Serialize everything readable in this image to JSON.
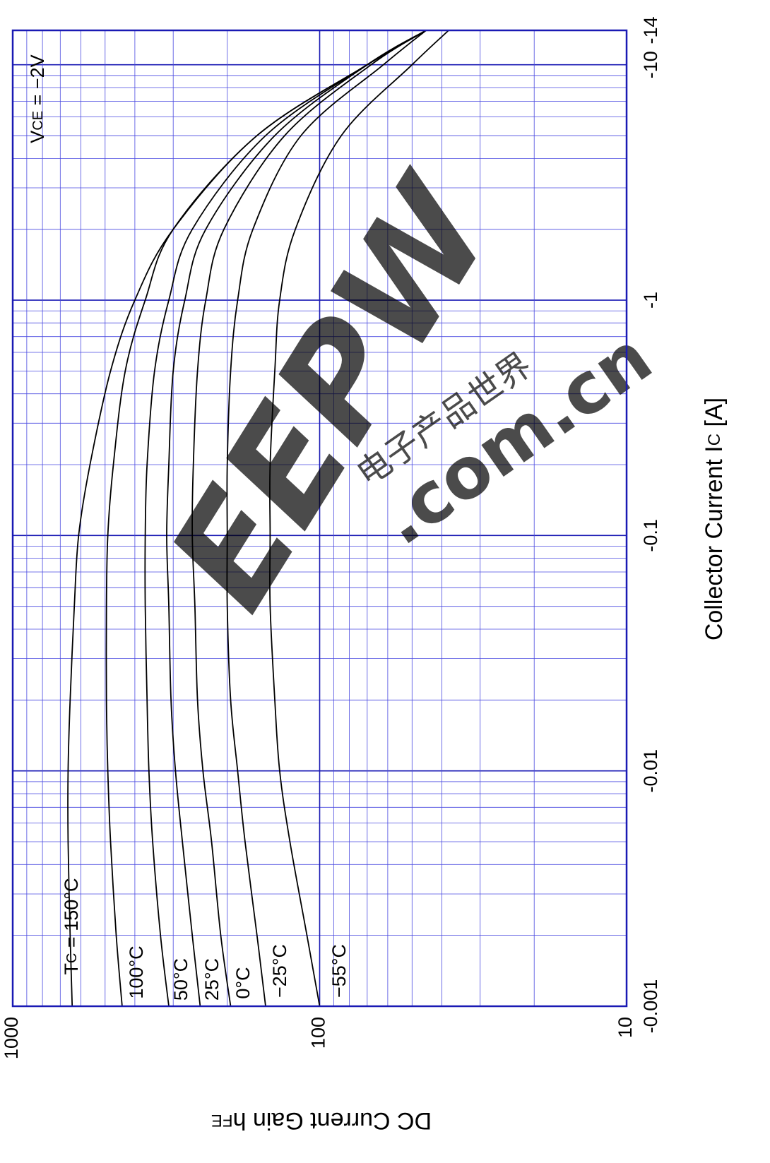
{
  "chart_data": {
    "type": "line",
    "orientation": "rotated-90-counterclockwise",
    "xlabel": "Collector Current  I",
    "xlabel_sub": "C",
    "xlabel_unit": "  [A]",
    "ylabel": "DC Current Gain   h",
    "ylabel_sub": "FE",
    "xscale": "log",
    "yscale": "log",
    "xlim": [
      0.001,
      14
    ],
    "ylim": [
      10,
      1000
    ],
    "x_tick_labels": [
      "-0.001",
      "-0.01",
      "-0.1",
      "-1",
      "-10",
      "-14"
    ],
    "y_tick_labels": [
      "10",
      "100",
      "1000"
    ],
    "grid": true,
    "annotation": {
      "text_prefix": "V",
      "text_sub": "CE",
      "text_suffix": " = −2V"
    },
    "series_label_prefix": {
      "text": "T",
      "sub": "C",
      "suffix": " = "
    },
    "series": [
      {
        "name": "150°C",
        "x": [
          0.001,
          0.002,
          0.005,
          0.01,
          0.02,
          0.05,
          0.1,
          0.2,
          0.5,
          1,
          2,
          5,
          10,
          14
        ],
        "y": [
          640,
          650,
          660,
          660,
          650,
          630,
          610,
          560,
          480,
          400,
          300,
          160,
          70,
          45
        ]
      },
      {
        "name": "100°C",
        "x": [
          0.001,
          0.002,
          0.005,
          0.01,
          0.02,
          0.05,
          0.1,
          0.2,
          0.5,
          1,
          2,
          5,
          10,
          14
        ],
        "y": [
          440,
          460,
          480,
          490,
          495,
          495,
          490,
          470,
          430,
          370,
          300,
          160,
          70,
          45
        ]
      },
      {
        "name": "50°C",
        "x": [
          0.001,
          0.002,
          0.005,
          0.01,
          0.02,
          0.05,
          0.1,
          0.2,
          0.5,
          1,
          2,
          5,
          10,
          14
        ],
        "y": [
          310,
          330,
          350,
          360,
          365,
          370,
          370,
          365,
          345,
          310,
          260,
          150,
          70,
          45
        ]
      },
      {
        "name": "25°C",
        "x": [
          0.001,
          0.002,
          0.005,
          0.01,
          0.02,
          0.05,
          0.1,
          0.2,
          0.5,
          1,
          2,
          5,
          10,
          14
        ],
        "y": [
          245,
          260,
          280,
          295,
          305,
          310,
          315,
          310,
          300,
          275,
          235,
          140,
          70,
          45
        ]
      },
      {
        "name": "0°C",
        "x": [
          0.001,
          0.002,
          0.005,
          0.01,
          0.02,
          0.05,
          0.1,
          0.2,
          0.5,
          1,
          2,
          5,
          10,
          14
        ],
        "y": [
          195,
          210,
          225,
          240,
          250,
          255,
          260,
          258,
          250,
          235,
          205,
          130,
          68,
          45
        ]
      },
      {
        "name": "−25°C",
        "x": [
          0.001,
          0.002,
          0.005,
          0.01,
          0.02,
          0.05,
          0.1,
          0.2,
          0.5,
          1,
          2,
          5,
          10,
          14
        ],
        "y": [
          150,
          160,
          175,
          185,
          195,
          200,
          200,
          200,
          195,
          185,
          165,
          115,
          62,
          45
        ]
      },
      {
        "name": "−55°C",
        "x": [
          0.001,
          0.002,
          0.005,
          0.01,
          0.02,
          0.05,
          0.1,
          0.2,
          0.5,
          1,
          2,
          5,
          10,
          14
        ],
        "y": [
          100,
          110,
          125,
          135,
          140,
          145,
          145,
          145,
          140,
          135,
          120,
          85,
          50,
          38
        ]
      }
    ]
  },
  "watermark": {
    "logo_text": "EEPW",
    "domain_text": ".com.cn",
    "cn_text": "电子产品世界",
    "color": "#e06060"
  },
  "colors": {
    "axis": "#1a1ab4",
    "grid": "#4a4ae0",
    "curve": "#000000"
  }
}
